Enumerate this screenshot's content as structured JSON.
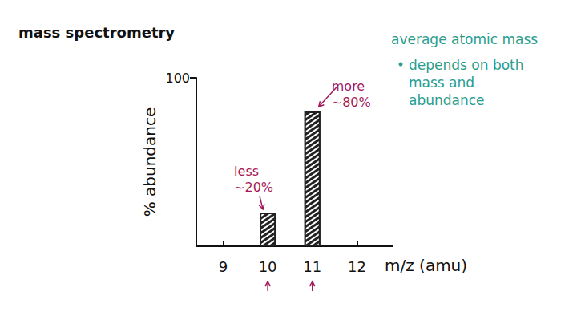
{
  "chart_data": {
    "type": "bar",
    "title": "mass spectrometry",
    "x_label": "m/z (amu)",
    "y_label": "% abundance",
    "x": [
      10,
      11
    ],
    "values": [
      20,
      80
    ],
    "color": "#222222",
    "xlim": [
      8.4,
      12.8
    ],
    "xticks": [
      9,
      10,
      11,
      12
    ],
    "ylim": [
      0,
      100
    ],
    "yticks": [
      100
    ],
    "grid": false,
    "annotations": [
      {
        "text": "less ~20%",
        "x": 10,
        "color": "#a3195b"
      },
      {
        "text": "more ~80%",
        "x": 11,
        "color": "#a3195b"
      }
    ],
    "notes": {
      "title": "average atomic mass",
      "bullet": "depends on both mass and abundance",
      "color": "#2a9d8f"
    }
  }
}
